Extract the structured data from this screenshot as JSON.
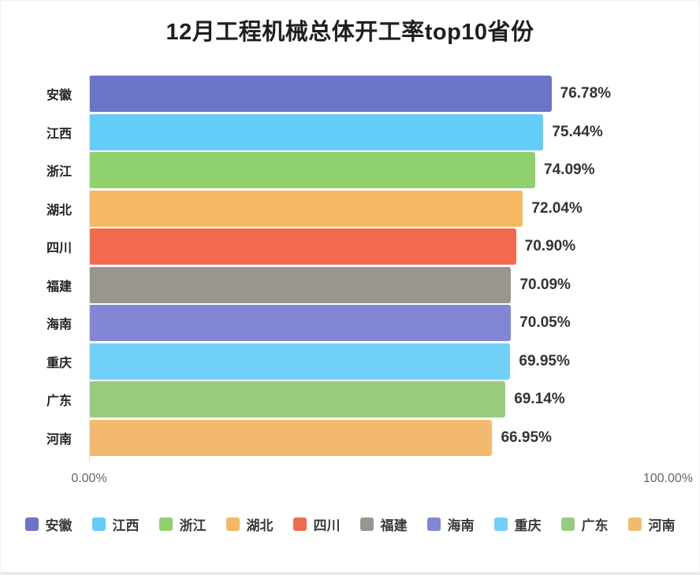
{
  "chart": {
    "title": "12月工程机械总体开工率top10省份",
    "x_min_label": "0.00%",
    "x_max_label": "100.00%"
  },
  "chart_data": {
    "type": "bar",
    "orientation": "horizontal",
    "title": "12月工程机械总体开工率top10省份",
    "categories": [
      "安徽",
      "江西",
      "浙江",
      "湖北",
      "四川",
      "福建",
      "海南",
      "重庆",
      "广东",
      "河南"
    ],
    "values": [
      76.78,
      75.44,
      74.09,
      72.04,
      70.9,
      70.09,
      70.05,
      69.95,
      69.14,
      66.95
    ],
    "value_labels": [
      "76.78%",
      "75.44%",
      "74.09%",
      "72.04%",
      "70.90%",
      "70.09%",
      "70.05%",
      "69.95%",
      "69.14%",
      "66.95%"
    ],
    "bar_colors": [
      "#6B74C6",
      "#63CCF8",
      "#8FD06F",
      "#F5B762",
      "#F26A50",
      "#9A968E",
      "#8187D4",
      "#70D0F8",
      "#97CC7E",
      "#F3BA6F"
    ],
    "xlabel": "",
    "ylabel": "",
    "xlim": [
      0,
      100
    ],
    "x_tick_labels": [
      "0.00%",
      "100.00%"
    ],
    "grid": false,
    "legend_position": "bottom",
    "legend": [
      "安徽",
      "江西",
      "浙江",
      "湖北",
      "四川",
      "福建",
      "海南",
      "重庆",
      "广东",
      "河南"
    ]
  }
}
